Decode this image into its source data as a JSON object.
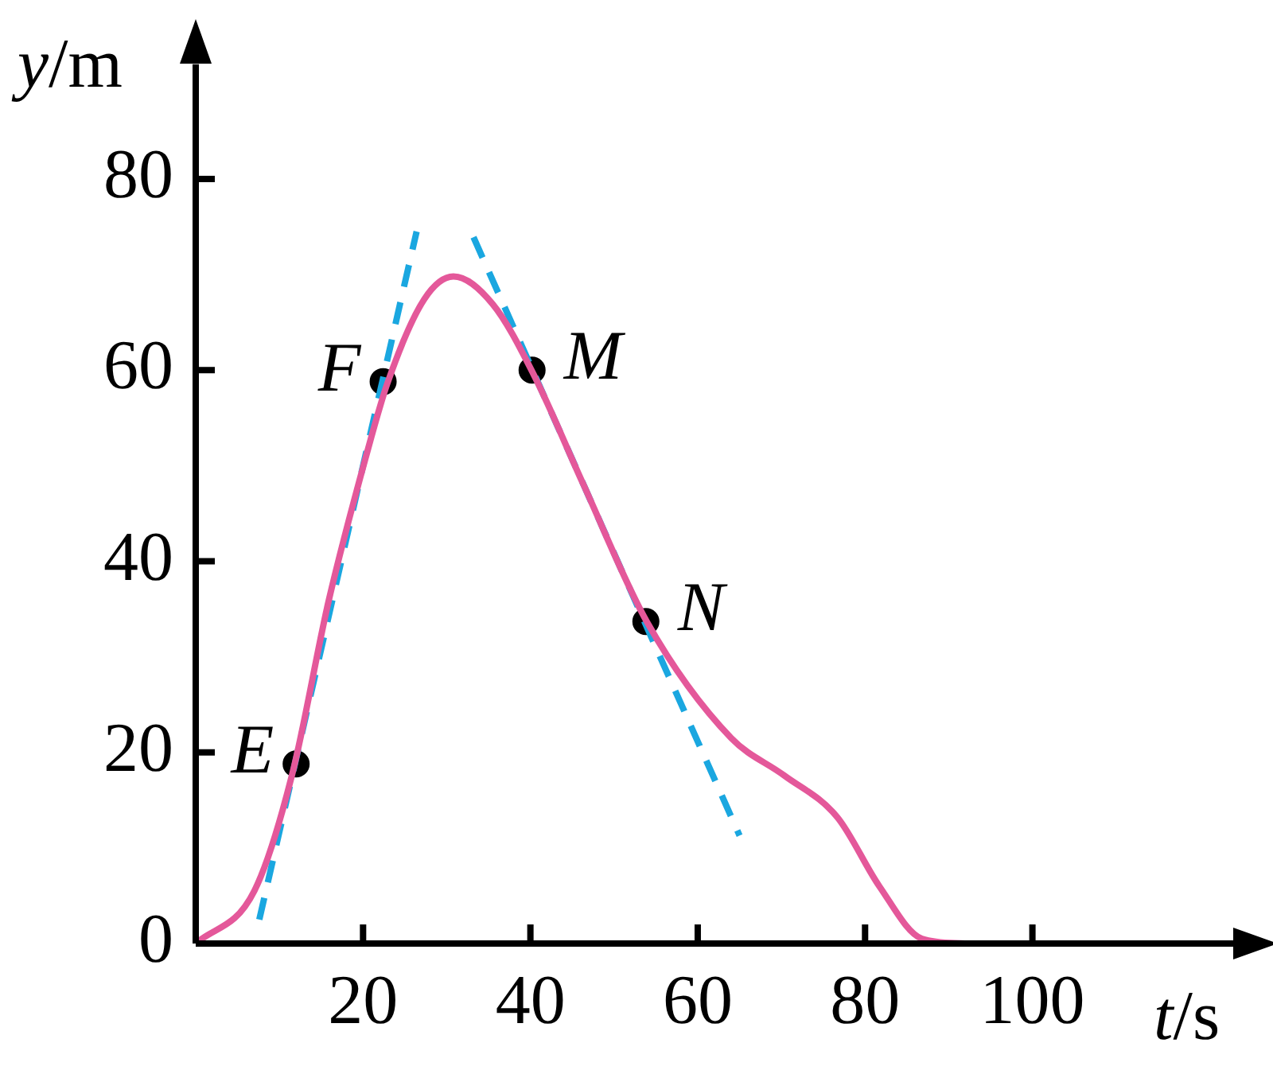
{
  "chart_data": {
    "type": "line",
    "xlabel": "t/s",
    "ylabel": "y/m",
    "xlim": [
      0,
      124
    ],
    "ylim": [
      0,
      92
    ],
    "xticks": [
      20,
      40,
      60,
      80,
      100
    ],
    "yticks": [
      0,
      20,
      40,
      60,
      80
    ],
    "grid": false,
    "legend": false,
    "marker": "none",
    "series": [
      {
        "color": "#e4589a",
        "x": [
          0,
          7.0,
          11.5,
          15.9,
          20.3,
          22.9,
          27.3,
          30.8,
          35.5,
          40.3,
          46.3,
          53.9,
          64.0,
          70.3,
          76.7,
          81.7,
          86.8,
          91.9
        ],
        "values": [
          0,
          5.5,
          17.6,
          35.9,
          50.8,
          58.6,
          67.4,
          69.8,
          66.9,
          59.7,
          48.1,
          33.7,
          21.5,
          17.6,
          13.2,
          6.0,
          0.5,
          0
        ]
      },
      {
        "type": "line",
        "line_style": "dashed",
        "color": "#1aa7e0",
        "x": [
          7.6,
          26.4
        ],
        "values": [
          2.5,
          74.5
        ]
      },
      {
        "type": "line",
        "line_style": "dashed",
        "color": "#1aa7e0",
        "x": [
          33.2,
          65.0
        ],
        "values": [
          73.9,
          11.3
        ]
      },
      {
        "type": "scatter",
        "marker": "circle",
        "color": "#000000",
        "x": [
          12.0,
          22.4,
          40.2,
          53.8
        ],
        "values": [
          18.8,
          58.8,
          60.0,
          33.7
        ]
      }
    ],
    "annotations": [
      {
        "text": "E",
        "x": 12.0,
        "y": 18.8
      },
      {
        "text": "F",
        "x": 22.4,
        "y": 58.8
      },
      {
        "text": "M",
        "x": 40.2,
        "y": 60.0
      },
      {
        "text": "N",
        "x": 53.8,
        "y": 33.7
      }
    ]
  }
}
